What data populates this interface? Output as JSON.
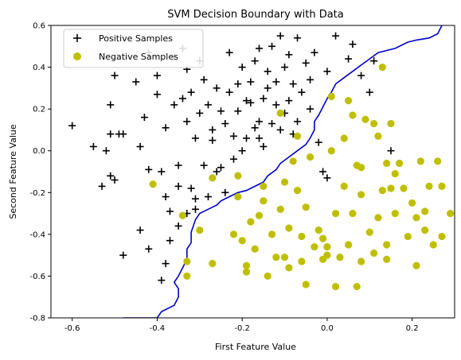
{
  "chart_data": {
    "type": "scatter",
    "title": "SVM Decision Boundary with Data",
    "xlabel": "First Feature Value",
    "ylabel": "Second Feature Value",
    "xlim": [
      -0.65,
      0.3
    ],
    "ylim": [
      -0.8,
      0.6
    ],
    "xticks": [
      "-0.6",
      "-0.4",
      "-0.2",
      "0.0",
      "0.2"
    ],
    "xtick_values": [
      -0.6,
      -0.4,
      -0.2,
      0.0,
      0.2
    ],
    "yticks": [
      "-0.8",
      "-0.6",
      "-0.4",
      "-0.2",
      "0.0",
      "0.2",
      "0.4",
      "0.6"
    ],
    "ytick_values": [
      -0.8,
      -0.6,
      -0.4,
      -0.2,
      0.0,
      0.2,
      0.4,
      0.6
    ],
    "grid": false,
    "legend_position": "top-left",
    "series": [
      {
        "name": "Positive Samples",
        "marker": "plus",
        "color": "#000000",
        "points": [
          [
            -0.6,
            0.12
          ],
          [
            -0.55,
            0.02
          ],
          [
            -0.53,
            -0.17
          ],
          [
            -0.52,
            0.0
          ],
          [
            -0.51,
            0.22
          ],
          [
            -0.51,
            0.08
          ],
          [
            -0.51,
            -0.12
          ],
          [
            -0.5,
            0.36
          ],
          [
            -0.5,
            -0.14
          ],
          [
            -0.49,
            0.08
          ],
          [
            -0.48,
            -0.5
          ],
          [
            -0.48,
            0.08
          ],
          [
            -0.45,
            0.33
          ],
          [
            -0.44,
            0.02
          ],
          [
            -0.44,
            -0.38
          ],
          [
            -0.43,
            0.16
          ],
          [
            -0.42,
            -0.09
          ],
          [
            -0.42,
            -0.47
          ],
          [
            -0.4,
            0.27
          ],
          [
            -0.4,
            0.36
          ],
          [
            -0.39,
            -0.1
          ],
          [
            -0.39,
            -0.62
          ],
          [
            -0.38,
            -0.54
          ],
          [
            -0.38,
            0.11
          ],
          [
            -0.37,
            -0.43
          ],
          [
            -0.37,
            -0.29
          ],
          [
            -0.36,
            0.22
          ],
          [
            -0.36,
            0.45
          ],
          [
            -0.35,
            -0.36
          ],
          [
            -0.35,
            -0.17
          ],
          [
            -0.34,
            0.49
          ],
          [
            -0.34,
            0.25
          ],
          [
            -0.33,
            0.14
          ],
          [
            -0.33,
            0.39
          ],
          [
            -0.32,
            0.28
          ],
          [
            -0.32,
            -0.18
          ],
          [
            -0.31,
            -0.23
          ],
          [
            -0.31,
            -0.28
          ],
          [
            -0.31,
            0.06
          ],
          [
            -0.3,
            0.18
          ],
          [
            -0.3,
            0.43
          ],
          [
            -0.29,
            -0.07
          ],
          [
            -0.29,
            0.34
          ],
          [
            -0.28,
            0.22
          ],
          [
            -0.28,
            -0.22
          ],
          [
            -0.27,
            0.1
          ],
          [
            -0.27,
            0.05
          ],
          [
            -0.26,
            0.3
          ],
          [
            -0.26,
            -0.1
          ],
          [
            -0.25,
            0.19
          ],
          [
            -0.25,
            -0.08
          ],
          [
            -0.24,
            0.13
          ],
          [
            -0.24,
            -0.2
          ],
          [
            -0.23,
            0.47
          ],
          [
            -0.23,
            0.28
          ],
          [
            -0.22,
            -0.04
          ],
          [
            -0.22,
            0.07
          ],
          [
            -0.21,
            0.32
          ],
          [
            -0.21,
            0.19
          ],
          [
            -0.2,
            0.4
          ],
          [
            -0.2,
            0.0
          ],
          [
            -0.19,
            0.24
          ],
          [
            -0.19,
            0.06
          ],
          [
            -0.18,
            0.23
          ],
          [
            -0.18,
            0.33
          ],
          [
            -0.17,
            0.43
          ],
          [
            -0.17,
            0.11
          ],
          [
            -0.16,
            0.14
          ],
          [
            -0.16,
            0.49
          ],
          [
            -0.16,
            0.06
          ],
          [
            -0.15,
            0.25
          ],
          [
            -0.15,
            0.02
          ],
          [
            -0.14,
            0.38
          ],
          [
            -0.14,
            0.3
          ],
          [
            -0.13,
            0.5
          ],
          [
            -0.13,
            0.13
          ],
          [
            -0.12,
            0.33
          ],
          [
            -0.12,
            0.22
          ],
          [
            -0.11,
            0.55
          ],
          [
            -0.11,
            0.1
          ],
          [
            -0.1,
            0.4
          ],
          [
            -0.1,
            0.18
          ],
          [
            -0.09,
            0.46
          ],
          [
            -0.09,
            0.24
          ],
          [
            -0.08,
            0.08
          ],
          [
            -0.08,
            0.32
          ],
          [
            -0.07,
            0.54
          ],
          [
            -0.07,
            0.14
          ],
          [
            -0.06,
            0.28
          ],
          [
            -0.05,
            0.42
          ],
          [
            -0.04,
            0.2
          ],
          [
            -0.04,
            0.34
          ],
          [
            -0.03,
            0.47
          ],
          [
            -0.02,
            0.04
          ],
          [
            -0.01,
            -0.1
          ],
          [
            0.0,
            -0.13
          ],
          [
            0.0,
            0.38
          ],
          [
            0.02,
            0.55
          ],
          [
            0.05,
            0.44
          ],
          [
            0.06,
            0.51
          ],
          [
            0.08,
            0.36
          ],
          [
            0.11,
            0.43
          ],
          [
            0.15,
            0.0
          ],
          [
            0.1,
            0.28
          ],
          [
            -0.42,
            0.47
          ],
          [
            -0.33,
            -0.3
          ],
          [
            -0.38,
            -0.22
          ],
          [
            -0.35,
            -0.07
          ]
        ]
      },
      {
        "name": "Negative Samples",
        "marker": "circle",
        "color": "#bfbf00",
        "points": [
          [
            -0.41,
            -0.16
          ],
          [
            -0.34,
            -0.31
          ],
          [
            -0.33,
            -0.53
          ],
          [
            -0.33,
            -0.6
          ],
          [
            -0.3,
            -0.38
          ],
          [
            -0.27,
            -0.13
          ],
          [
            -0.27,
            -0.54
          ],
          [
            -0.22,
            -0.4
          ],
          [
            -0.21,
            -0.22
          ],
          [
            -0.21,
            -0.12
          ],
          [
            -0.2,
            -0.43
          ],
          [
            -0.19,
            -0.55
          ],
          [
            -0.19,
            -0.58
          ],
          [
            -0.18,
            -0.34
          ],
          [
            -0.17,
            -0.47
          ],
          [
            -0.16,
            -0.31
          ],
          [
            -0.15,
            -0.17
          ],
          [
            -0.15,
            -0.24
          ],
          [
            -0.14,
            -0.6
          ],
          [
            -0.13,
            -0.4
          ],
          [
            -0.12,
            -0.51
          ],
          [
            -0.11,
            -0.28
          ],
          [
            -0.1,
            -0.15
          ],
          [
            -0.1,
            -0.51
          ],
          [
            -0.09,
            -0.56
          ],
          [
            -0.09,
            -0.37
          ],
          [
            -0.08,
            -0.05
          ],
          [
            -0.07,
            -0.19
          ],
          [
            -0.06,
            -0.41
          ],
          [
            -0.06,
            -0.53
          ],
          [
            -0.05,
            -0.64
          ],
          [
            -0.05,
            -0.27
          ],
          [
            -0.04,
            -0.03
          ],
          [
            -0.03,
            -0.46
          ],
          [
            -0.02,
            -0.38
          ],
          [
            -0.01,
            -0.42
          ],
          [
            -0.01,
            -0.52
          ],
          [
            0.0,
            -0.46
          ],
          [
            0.0,
            -0.5
          ],
          [
            0.01,
            0.26
          ],
          [
            0.01,
            0.0
          ],
          [
            0.02,
            -0.3
          ],
          [
            0.02,
            -0.65
          ],
          [
            0.03,
            -0.51
          ],
          [
            0.04,
            -0.17
          ],
          [
            0.04,
            0.06
          ],
          [
            0.05,
            0.24
          ],
          [
            0.05,
            -0.45
          ],
          [
            0.06,
            0.17
          ],
          [
            0.06,
            -0.3
          ],
          [
            0.07,
            -0.07
          ],
          [
            0.07,
            -0.65
          ],
          [
            0.08,
            -0.08
          ],
          [
            0.08,
            -0.21
          ],
          [
            0.08,
            -0.53
          ],
          [
            0.09,
            0.15
          ],
          [
            0.1,
            -0.39
          ],
          [
            0.11,
            0.13
          ],
          [
            0.11,
            -0.49
          ],
          [
            0.12,
            0.07
          ],
          [
            0.12,
            -0.32
          ],
          [
            0.13,
            -0.19
          ],
          [
            0.13,
            0.4
          ],
          [
            0.14,
            -0.06
          ],
          [
            0.14,
            -0.45
          ],
          [
            0.14,
            -0.52
          ],
          [
            0.15,
            -0.18
          ],
          [
            0.15,
            0.13
          ],
          [
            0.16,
            -0.11
          ],
          [
            0.16,
            -0.3
          ],
          [
            0.17,
            -0.06
          ],
          [
            0.18,
            -0.18
          ],
          [
            0.19,
            -0.41
          ],
          [
            0.2,
            -0.25
          ],
          [
            0.21,
            -0.32
          ],
          [
            0.21,
            -0.55
          ],
          [
            0.22,
            -0.05
          ],
          [
            0.23,
            -0.29
          ],
          [
            0.23,
            -0.38
          ],
          [
            0.24,
            -0.17
          ],
          [
            0.25,
            -0.45
          ],
          [
            0.26,
            -0.05
          ],
          [
            0.27,
            -0.17
          ],
          [
            0.27,
            -0.41
          ],
          [
            0.29,
            -0.3
          ],
          [
            -0.11,
            0.18
          ],
          [
            -0.07,
            0.07
          ]
        ]
      },
      {
        "name": "",
        "type": "line",
        "color": "#0000cc",
        "points": [
          [
            -0.48,
            -0.8
          ],
          [
            -0.47,
            -0.8
          ],
          [
            -0.4,
            -0.8
          ],
          [
            -0.39,
            -0.77
          ],
          [
            -0.36,
            -0.74
          ],
          [
            -0.35,
            -0.7
          ],
          [
            -0.35,
            -0.66
          ],
          [
            -0.36,
            -0.63
          ],
          [
            -0.35,
            -0.6
          ],
          [
            -0.34,
            -0.56
          ],
          [
            -0.33,
            -0.52
          ],
          [
            -0.33,
            -0.47
          ],
          [
            -0.32,
            -0.44
          ],
          [
            -0.32,
            -0.39
          ],
          [
            -0.31,
            -0.33
          ],
          [
            -0.3,
            -0.3
          ],
          [
            -0.28,
            -0.28
          ],
          [
            -0.26,
            -0.26
          ],
          [
            -0.25,
            -0.24
          ],
          [
            -0.23,
            -0.22
          ],
          [
            -0.21,
            -0.2
          ],
          [
            -0.19,
            -0.19
          ],
          [
            -0.17,
            -0.17
          ],
          [
            -0.15,
            -0.15
          ],
          [
            -0.14,
            -0.12
          ],
          [
            -0.12,
            -0.09
          ],
          [
            -0.11,
            -0.06
          ],
          [
            -0.09,
            -0.03
          ],
          [
            -0.07,
            0.0
          ],
          [
            -0.05,
            0.03
          ],
          [
            -0.04,
            0.06
          ],
          [
            -0.03,
            0.1
          ],
          [
            -0.03,
            0.14
          ],
          [
            -0.02,
            0.17
          ],
          [
            -0.01,
            0.21
          ],
          [
            0.0,
            0.25
          ],
          [
            0.01,
            0.28
          ],
          [
            0.02,
            0.32
          ],
          [
            0.04,
            0.35
          ],
          [
            0.06,
            0.38
          ],
          [
            0.08,
            0.41
          ],
          [
            0.1,
            0.44
          ],
          [
            0.12,
            0.47
          ],
          [
            0.16,
            0.49
          ],
          [
            0.19,
            0.52
          ],
          [
            0.21,
            0.53
          ],
          [
            0.24,
            0.54
          ],
          [
            0.26,
            0.56
          ],
          [
            0.27,
            0.6
          ]
        ]
      }
    ]
  }
}
